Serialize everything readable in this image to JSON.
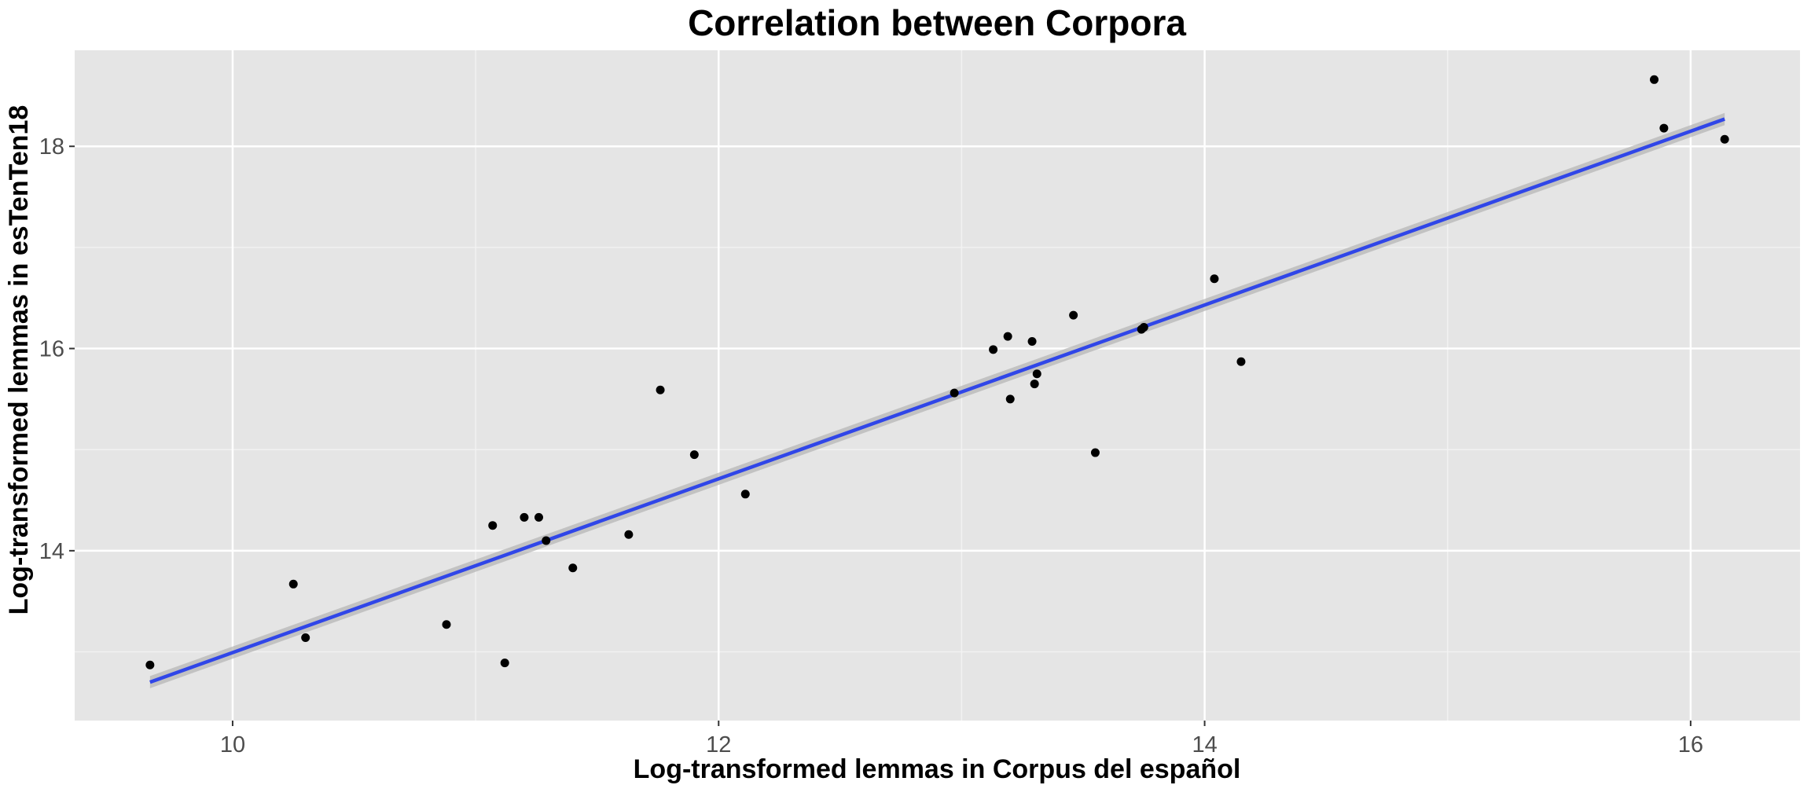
{
  "chart_data": {
    "type": "scatter",
    "title": "Correlation between Corpora",
    "xlabel": "Log-transformed lemmas in Corpus del español",
    "ylabel": "Log-transformed lemmas in esTenTen18",
    "xlim": [
      9.35,
      16.45
    ],
    "ylim": [
      12.32,
      18.95
    ],
    "x_ticks": [
      10,
      12,
      14,
      16
    ],
    "y_ticks": [
      14,
      16,
      18
    ],
    "x_tick_labels": [
      "10",
      "12",
      "14",
      "16"
    ],
    "y_tick_labels": [
      "14",
      "16",
      "18"
    ],
    "grid": true,
    "legend": "none",
    "colors": {
      "panel_background": "#e5e5e5",
      "grid_major": "#ffffff",
      "grid_minor": "#f2f2f2",
      "points": "#000000",
      "fit_line": "#3046e8",
      "confidence_band": "#b3b3b3"
    },
    "points": [
      {
        "x": 9.66,
        "y": 12.87
      },
      {
        "x": 10.25,
        "y": 13.67
      },
      {
        "x": 10.3,
        "y": 13.14
      },
      {
        "x": 10.88,
        "y": 13.27
      },
      {
        "x": 11.07,
        "y": 14.25
      },
      {
        "x": 11.12,
        "y": 12.89
      },
      {
        "x": 11.2,
        "y": 14.33
      },
      {
        "x": 11.26,
        "y": 14.33
      },
      {
        "x": 11.29,
        "y": 14.1
      },
      {
        "x": 11.4,
        "y": 13.83
      },
      {
        "x": 11.63,
        "y": 14.16
      },
      {
        "x": 11.76,
        "y": 15.59
      },
      {
        "x": 11.9,
        "y": 14.95
      },
      {
        "x": 12.11,
        "y": 14.56
      },
      {
        "x": 12.97,
        "y": 15.56
      },
      {
        "x": 13.13,
        "y": 15.99
      },
      {
        "x": 13.19,
        "y": 16.12
      },
      {
        "x": 13.2,
        "y": 15.5
      },
      {
        "x": 13.29,
        "y": 16.07
      },
      {
        "x": 13.3,
        "y": 15.65
      },
      {
        "x": 13.31,
        "y": 15.75
      },
      {
        "x": 13.46,
        "y": 16.33
      },
      {
        "x": 13.55,
        "y": 14.97
      },
      {
        "x": 13.74,
        "y": 16.19
      },
      {
        "x": 13.75,
        "y": 16.21
      },
      {
        "x": 14.04,
        "y": 16.69
      },
      {
        "x": 14.15,
        "y": 15.87
      },
      {
        "x": 15.85,
        "y": 18.66
      },
      {
        "x": 15.89,
        "y": 18.18
      },
      {
        "x": 16.14,
        "y": 18.07
      }
    ],
    "fit_line": {
      "x": [
        9.66,
        16.14
      ],
      "y": [
        12.7,
        18.27
      ],
      "band_halfwidth": 0.06
    }
  }
}
